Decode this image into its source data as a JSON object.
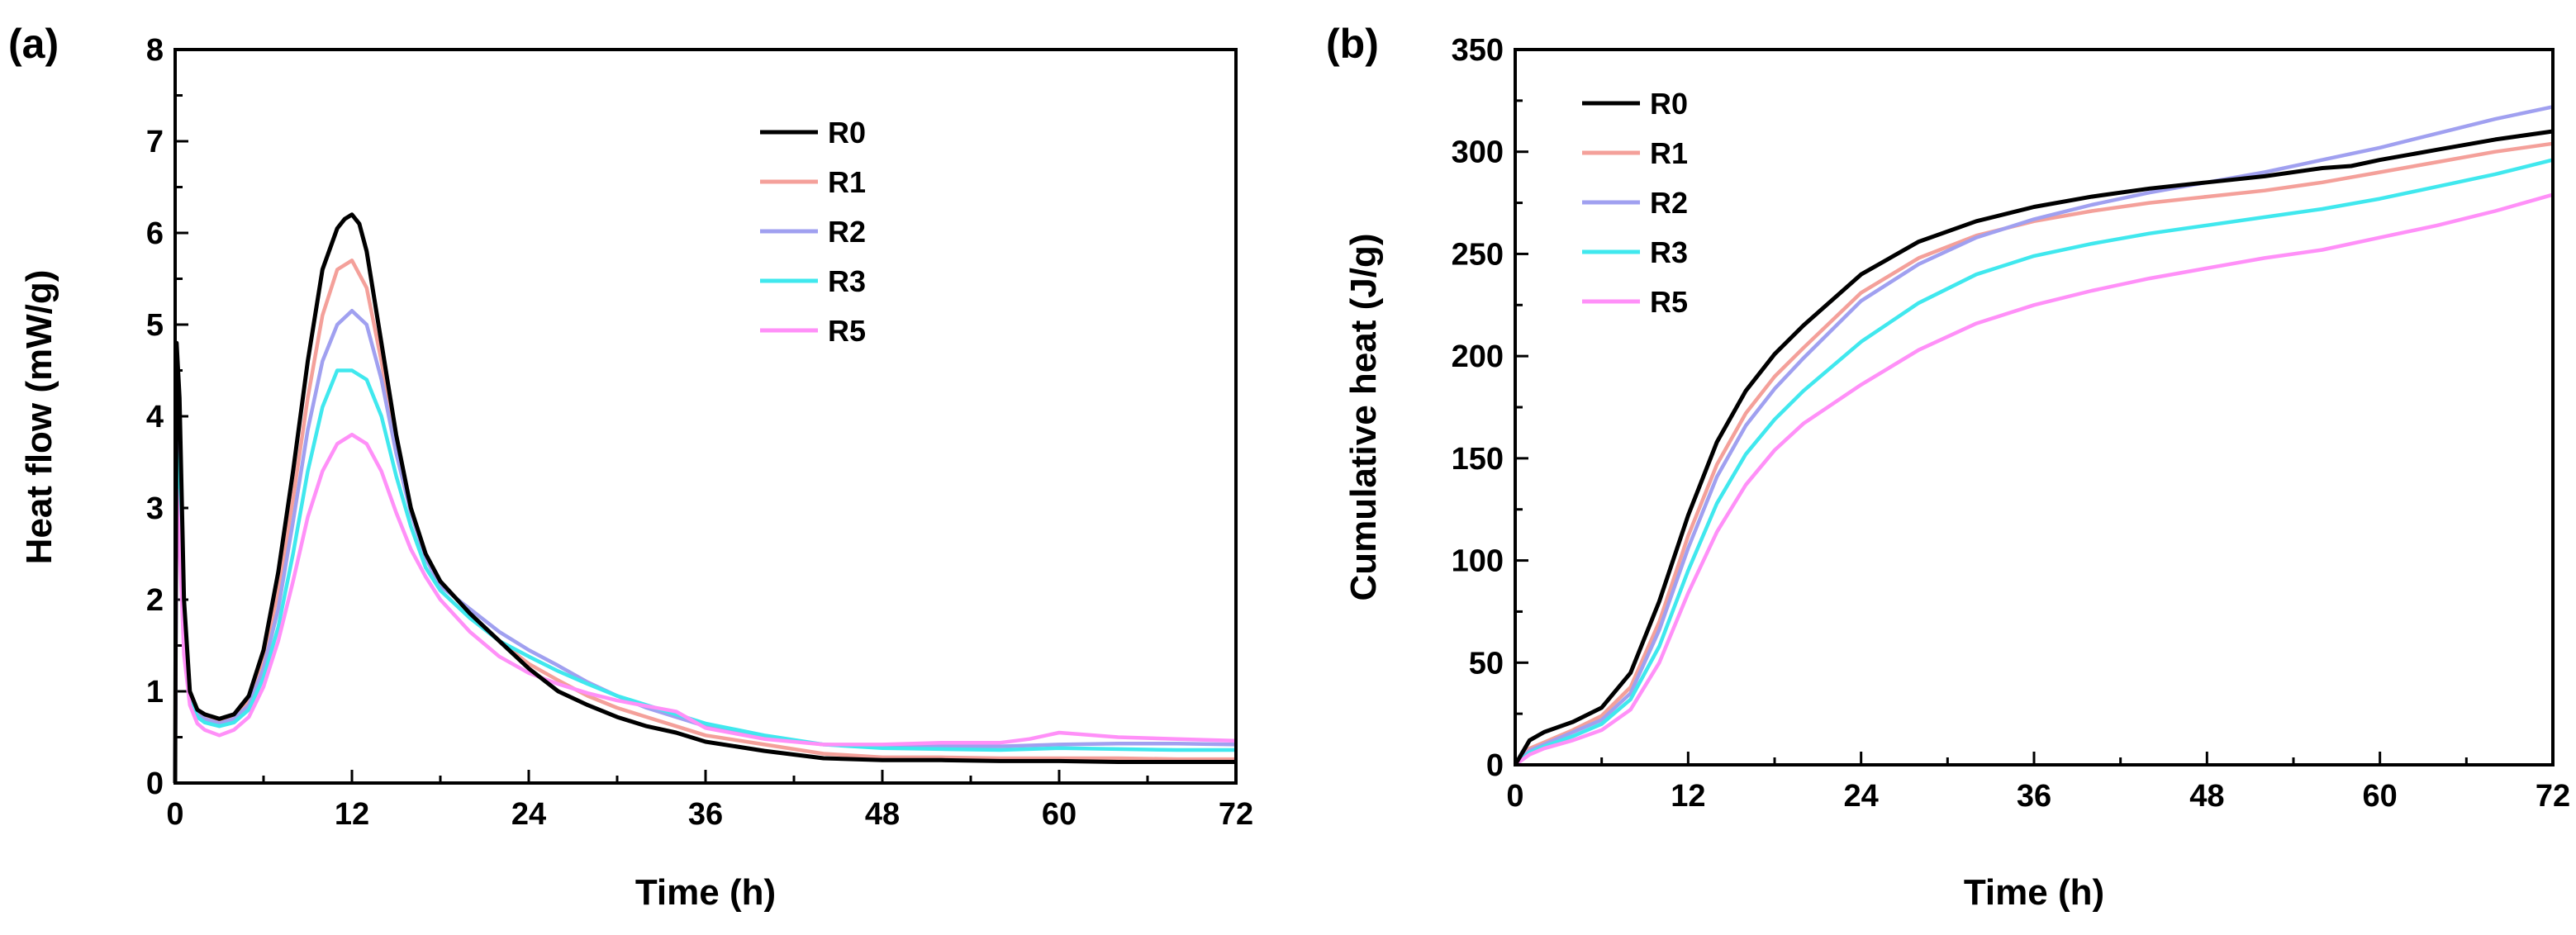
{
  "chart_data": [
    {
      "type": "line",
      "panel_label": "(a)",
      "xlabel": "Time (h)",
      "ylabel": "Heat flow (mW/g)",
      "xlim": [
        0,
        72
      ],
      "ylim": [
        0,
        8
      ],
      "xticks": [
        0,
        12,
        24,
        36,
        48,
        60,
        72
      ],
      "yticks": [
        0,
        1,
        2,
        3,
        4,
        5,
        6,
        7,
        8
      ],
      "grid": false,
      "legend": "top-right",
      "series": [
        {
          "name": "R0",
          "color": "#000000",
          "x": [
            0,
            0.1,
            0.3,
            0.6,
            1,
            1.5,
            2,
            3,
            4,
            5,
            6,
            7,
            8,
            9,
            10,
            11,
            11.5,
            12,
            12.5,
            13,
            14,
            15,
            16,
            17,
            18,
            20,
            22,
            24,
            26,
            28,
            30,
            32,
            34,
            36,
            40,
            44,
            48,
            52,
            56,
            60,
            64,
            68,
            72
          ],
          "y": [
            0,
            4.8,
            4.2,
            2.0,
            1.0,
            0.8,
            0.75,
            0.7,
            0.75,
            0.95,
            1.45,
            2.3,
            3.4,
            4.6,
            5.6,
            6.05,
            6.15,
            6.2,
            6.1,
            5.8,
            4.8,
            3.8,
            3.0,
            2.5,
            2.2,
            1.85,
            1.55,
            1.25,
            1.0,
            0.85,
            0.72,
            0.62,
            0.55,
            0.45,
            0.35,
            0.27,
            0.25,
            0.25,
            0.24,
            0.24,
            0.23,
            0.23,
            0.23
          ]
        },
        {
          "name": "R1",
          "color": "#f4a09a",
          "x": [
            0,
            0.1,
            0.3,
            0.6,
            1,
            1.5,
            2,
            3,
            4,
            5,
            6,
            7,
            8,
            9,
            10,
            11,
            12,
            13,
            14,
            15,
            16,
            17,
            18,
            20,
            22,
            24,
            26,
            28,
            30,
            32,
            34,
            36,
            40,
            44,
            48,
            52,
            56,
            60,
            64,
            68,
            72
          ],
          "y": [
            0,
            4.2,
            3.6,
            1.8,
            0.95,
            0.78,
            0.72,
            0.68,
            0.72,
            0.9,
            1.35,
            2.1,
            3.1,
            4.2,
            5.1,
            5.6,
            5.7,
            5.4,
            4.6,
            3.7,
            2.95,
            2.45,
            2.2,
            1.85,
            1.55,
            1.3,
            1.12,
            0.95,
            0.82,
            0.72,
            0.62,
            0.52,
            0.42,
            0.32,
            0.28,
            0.28,
            0.27,
            0.27,
            0.27,
            0.26,
            0.26
          ]
        },
        {
          "name": "R2",
          "color": "#a0a0f0",
          "x": [
            0,
            0.1,
            0.3,
            0.6,
            1,
            1.5,
            2,
            3,
            4,
            5,
            6,
            7,
            8,
            9,
            10,
            11,
            12,
            13,
            14,
            15,
            16,
            17,
            18,
            20,
            22,
            24,
            26,
            28,
            30,
            32,
            34,
            36,
            40,
            44,
            48,
            52,
            56,
            60,
            64,
            68,
            72
          ],
          "y": [
            0,
            3.8,
            3.2,
            1.7,
            0.92,
            0.75,
            0.7,
            0.65,
            0.7,
            0.85,
            1.25,
            1.9,
            2.85,
            3.85,
            4.6,
            5.0,
            5.15,
            5.0,
            4.4,
            3.6,
            2.95,
            2.45,
            2.15,
            1.9,
            1.65,
            1.45,
            1.28,
            1.1,
            0.95,
            0.82,
            0.72,
            0.62,
            0.5,
            0.42,
            0.4,
            0.4,
            0.4,
            0.42,
            0.43,
            0.43,
            0.42
          ]
        },
        {
          "name": "R3",
          "color": "#40e8ee",
          "x": [
            0,
            0.1,
            0.3,
            0.6,
            1,
            1.5,
            2,
            3,
            4,
            5,
            6,
            7,
            8,
            9,
            10,
            11,
            12,
            13,
            14,
            15,
            16,
            17,
            18,
            20,
            22,
            24,
            26,
            28,
            30,
            32,
            34,
            36,
            40,
            44,
            48,
            52,
            56,
            60,
            64,
            68,
            72
          ],
          "y": [
            0,
            3.6,
            3.0,
            1.6,
            0.9,
            0.72,
            0.66,
            0.62,
            0.66,
            0.8,
            1.15,
            1.7,
            2.5,
            3.4,
            4.1,
            4.5,
            4.5,
            4.4,
            4.0,
            3.35,
            2.8,
            2.35,
            2.1,
            1.8,
            1.55,
            1.38,
            1.22,
            1.08,
            0.95,
            0.85,
            0.75,
            0.65,
            0.52,
            0.42,
            0.38,
            0.37,
            0.36,
            0.38,
            0.37,
            0.36,
            0.36
          ]
        },
        {
          "name": "R5",
          "color": "#ff90f8",
          "x": [
            0,
            0.1,
            0.3,
            0.6,
            1,
            1.5,
            2,
            3,
            4,
            5,
            6,
            7,
            8,
            9,
            10,
            11,
            12,
            13,
            14,
            15,
            16,
            17,
            18,
            20,
            22,
            24,
            26,
            28,
            30,
            32,
            34,
            36,
            40,
            44,
            48,
            52,
            56,
            58,
            60,
            64,
            68,
            72
          ],
          "y": [
            0,
            3.2,
            2.6,
            1.4,
            0.85,
            0.65,
            0.58,
            0.52,
            0.58,
            0.72,
            1.05,
            1.55,
            2.2,
            2.9,
            3.4,
            3.7,
            3.8,
            3.7,
            3.4,
            2.95,
            2.55,
            2.25,
            2.0,
            1.65,
            1.38,
            1.2,
            1.08,
            0.98,
            0.9,
            0.84,
            0.78,
            0.6,
            0.48,
            0.42,
            0.42,
            0.44,
            0.44,
            0.48,
            0.55,
            0.5,
            0.48,
            0.46
          ]
        }
      ]
    },
    {
      "type": "line",
      "panel_label": "(b)",
      "xlabel": "Time (h)",
      "ylabel": "Cumulative heat (J/g)",
      "xlim": [
        0,
        72
      ],
      "ylim": [
        0,
        350
      ],
      "xticks": [
        0,
        12,
        24,
        36,
        48,
        60,
        72
      ],
      "yticks": [
        0,
        50,
        100,
        150,
        200,
        250,
        300,
        350
      ],
      "grid": false,
      "legend": "top-left",
      "series": [
        {
          "name": "R0",
          "color": "#000000",
          "x": [
            0,
            1,
            2,
            4,
            6,
            8,
            10,
            12,
            14,
            16,
            18,
            20,
            24,
            28,
            32,
            36,
            40,
            44,
            48,
            52,
            56,
            58,
            60,
            64,
            68,
            72
          ],
          "y": [
            0,
            12,
            16,
            21,
            28,
            45,
            80,
            122,
            158,
            183,
            201,
            215,
            240,
            256,
            266,
            273,
            278,
            282,
            285,
            288,
            292,
            293,
            296,
            301,
            306,
            310
          ]
        },
        {
          "name": "R1",
          "color": "#f4a09a",
          "x": [
            0,
            1,
            2,
            4,
            6,
            8,
            10,
            12,
            14,
            16,
            18,
            20,
            24,
            28,
            32,
            36,
            40,
            44,
            48,
            52,
            56,
            60,
            64,
            68,
            72
          ],
          "y": [
            0,
            8,
            11,
            17,
            24,
            38,
            70,
            112,
            147,
            172,
            190,
            204,
            231,
            248,
            259,
            266,
            271,
            275,
            278,
            281,
            285,
            290,
            295,
            300,
            304
          ]
        },
        {
          "name": "R2",
          "color": "#a0a0f0",
          "x": [
            0,
            1,
            2,
            4,
            6,
            8,
            10,
            12,
            14,
            16,
            18,
            20,
            24,
            28,
            32,
            36,
            40,
            44,
            48,
            52,
            56,
            60,
            64,
            68,
            72
          ],
          "y": [
            0,
            7,
            10,
            16,
            22,
            35,
            66,
            106,
            141,
            166,
            184,
            199,
            227,
            245,
            258,
            267,
            274,
            280,
            285,
            290,
            296,
            302,
            309,
            316,
            322
          ]
        },
        {
          "name": "R3",
          "color": "#40e8ee",
          "x": [
            0,
            1,
            2,
            4,
            6,
            8,
            10,
            12,
            14,
            16,
            18,
            20,
            24,
            28,
            32,
            36,
            40,
            44,
            48,
            52,
            56,
            60,
            64,
            68,
            72
          ],
          "y": [
            0,
            6,
            9,
            14,
            20,
            32,
            58,
            95,
            128,
            152,
            169,
            183,
            207,
            226,
            240,
            249,
            255,
            260,
            264,
            268,
            272,
            277,
            283,
            289,
            296
          ]
        },
        {
          "name": "R5",
          "color": "#ff90f8",
          "x": [
            0,
            1,
            2,
            4,
            6,
            8,
            10,
            12,
            14,
            16,
            18,
            20,
            24,
            28,
            32,
            36,
            40,
            44,
            48,
            52,
            56,
            60,
            64,
            68,
            72
          ],
          "y": [
            0,
            5,
            8,
            12,
            17,
            27,
            50,
            84,
            114,
            137,
            154,
            167,
            186,
            203,
            216,
            225,
            232,
            238,
            243,
            248,
            252,
            258,
            264,
            271,
            279
          ]
        }
      ]
    }
  ]
}
